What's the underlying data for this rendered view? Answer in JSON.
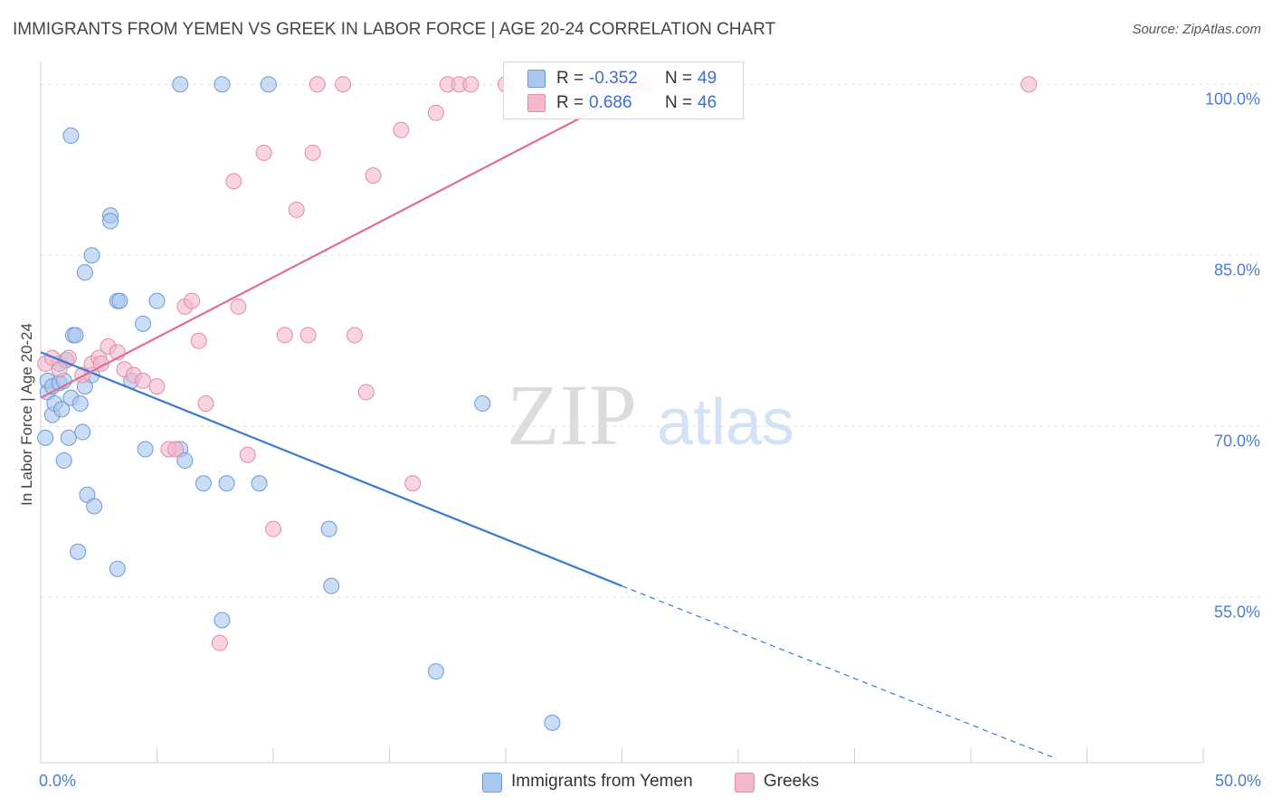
{
  "header": {
    "title": "IMMIGRANTS FROM YEMEN VS GREEK IN LABOR FORCE | AGE 20-24 CORRELATION CHART",
    "source": "Source: ZipAtlas.com"
  },
  "watermark": {
    "part1": "ZIP",
    "part2": "atlas"
  },
  "stats": [
    {
      "r_label": "R =",
      "r_value": "-0.352",
      "n_label": "N =",
      "n_value": "49",
      "color": "#a9c7ef"
    },
    {
      "r_label": "R =",
      "r_value": "0.686",
      "n_label": "N =",
      "n_value": "46",
      "color": "#f4b8cb"
    }
  ],
  "legend": [
    {
      "label": "Immigrants from Yemen",
      "color": "#a9c7ef"
    },
    {
      "label": "Greeks",
      "color": "#f4b8cb"
    }
  ],
  "chart_data": {
    "type": "scatter",
    "ylabel": "In Labor Force | Age 20-24",
    "xlim": [
      0,
      50
    ],
    "ylim": [
      40.5,
      102
    ],
    "x_tick_labels": [
      {
        "value": 0,
        "label": "0.0%"
      },
      {
        "value": 50,
        "label": "50.0%"
      }
    ],
    "y_tick_labels": [
      {
        "value": 100,
        "label": "100.0%"
      },
      {
        "value": 85,
        "label": "85.0%"
      },
      {
        "value": 70,
        "label": "70.0%"
      },
      {
        "value": 55,
        "label": "55.0%"
      }
    ],
    "x_minor_ticks": [
      0,
      5,
      10,
      15,
      20,
      25,
      30,
      35,
      40,
      45,
      50
    ],
    "y_gridlines": [
      100,
      85,
      70,
      55
    ],
    "series": [
      {
        "name": "Immigrants from Yemen",
        "color": "#a9c7ef",
        "stroke": "#6a9bd8",
        "trend_color": "#3a78d4",
        "trend": {
          "x0": 0,
          "y0": 76.5,
          "x1": 25,
          "y1": 56.0,
          "x_dash_end": 43.5,
          "y_dash_end": 41.0
        },
        "points": [
          [
            0.2,
            69.0
          ],
          [
            0.3,
            73.0
          ],
          [
            0.3,
            74.0
          ],
          [
            0.5,
            71.0
          ],
          [
            0.5,
            73.5
          ],
          [
            0.6,
            72.0
          ],
          [
            0.8,
            73.8
          ],
          [
            0.8,
            75.5
          ],
          [
            0.9,
            71.5
          ],
          [
            1.0,
            74.0
          ],
          [
            1.0,
            67.0
          ],
          [
            1.1,
            75.8
          ],
          [
            1.2,
            69.0
          ],
          [
            1.3,
            72.5
          ],
          [
            1.3,
            95.5
          ],
          [
            1.4,
            78.0
          ],
          [
            1.5,
            78.0
          ],
          [
            1.6,
            59.0
          ],
          [
            1.7,
            72.0
          ],
          [
            1.8,
            69.5
          ],
          [
            1.9,
            83.5
          ],
          [
            1.9,
            73.5
          ],
          [
            2.0,
            64.0
          ],
          [
            2.2,
            85.0
          ],
          [
            2.3,
            63.0
          ],
          [
            2.2,
            74.5
          ],
          [
            3.0,
            88.5
          ],
          [
            3.0,
            88.0
          ],
          [
            3.3,
            81.0
          ],
          [
            3.4,
            81.0
          ],
          [
            3.3,
            57.5
          ],
          [
            3.9,
            74.0
          ],
          [
            4.4,
            79.0
          ],
          [
            4.5,
            68.0
          ],
          [
            5.0,
            81.0
          ],
          [
            6.0,
            68.0
          ],
          [
            6.0,
            100.0
          ],
          [
            6.2,
            67.0
          ],
          [
            7.0,
            65.0
          ],
          [
            7.8,
            100.0
          ],
          [
            8.0,
            65.0
          ],
          [
            7.8,
            53.0
          ],
          [
            9.4,
            65.0
          ],
          [
            9.8,
            100.0
          ],
          [
            12.4,
            61.0
          ],
          [
            12.5,
            56.0
          ],
          [
            17.0,
            48.5
          ],
          [
            19.0,
            72.0
          ],
          [
            22.0,
            44.0
          ]
        ]
      },
      {
        "name": "Greeks",
        "color": "#f4b8cb",
        "stroke": "#e58aa8",
        "trend_color": "#e36c93",
        "trend": {
          "x0": 0,
          "y0": 72.5,
          "x1": 26,
          "y1": 100.0
        },
        "points": [
          [
            0.2,
            75.5
          ],
          [
            0.5,
            76.0
          ],
          [
            0.8,
            75.0
          ],
          [
            1.2,
            76.0
          ],
          [
            1.8,
            74.5
          ],
          [
            2.2,
            75.5
          ],
          [
            2.5,
            76.0
          ],
          [
            2.6,
            75.5
          ],
          [
            2.9,
            77.0
          ],
          [
            3.3,
            76.5
          ],
          [
            3.6,
            75.0
          ],
          [
            4.0,
            74.5
          ],
          [
            4.4,
            74.0
          ],
          [
            5.0,
            73.5
          ],
          [
            5.5,
            68.0
          ],
          [
            5.8,
            68.0
          ],
          [
            6.2,
            80.5
          ],
          [
            6.5,
            81.0
          ],
          [
            6.8,
            77.5
          ],
          [
            7.1,
            72.0
          ],
          [
            8.3,
            91.5
          ],
          [
            8.5,
            80.5
          ],
          [
            8.9,
            67.5
          ],
          [
            9.6,
            94.0
          ],
          [
            10.0,
            61.0
          ],
          [
            10.5,
            78.0
          ],
          [
            11.0,
            89.0
          ],
          [
            11.5,
            78.0
          ],
          [
            11.7,
            94.0
          ],
          [
            11.9,
            100.0
          ],
          [
            13.0,
            100.0
          ],
          [
            13.5,
            78.0
          ],
          [
            14.0,
            73.0
          ],
          [
            14.3,
            92.0
          ],
          [
            15.5,
            96.0
          ],
          [
            16.0,
            65.0
          ],
          [
            17.0,
            97.5
          ],
          [
            17.5,
            100.0
          ],
          [
            18.0,
            100.0
          ],
          [
            18.5,
            100.0
          ],
          [
            20.0,
            100.0
          ],
          [
            24.0,
            100.0
          ],
          [
            25.0,
            100.0
          ],
          [
            26.0,
            100.0
          ],
          [
            42.5,
            100.0
          ],
          [
            7.7,
            51.0
          ]
        ]
      }
    ]
  }
}
